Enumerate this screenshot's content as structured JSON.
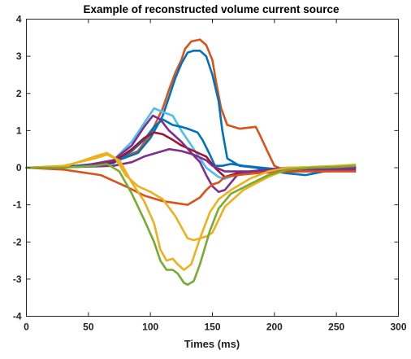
{
  "chart_data": {
    "type": "line",
    "title": "Example of reconstructed volume current source",
    "xlabel": "Times (ms)",
    "ylabel": "",
    "xlim": [
      0,
      300
    ],
    "ylim": [
      -4,
      4
    ],
    "x_ticks": [
      0,
      50,
      100,
      150,
      200,
      250,
      300
    ],
    "y_ticks": [
      -4,
      -3,
      -2,
      -1,
      0,
      1,
      2,
      3,
      4
    ],
    "x_tick_labels": [
      "0",
      "50",
      "100",
      "150",
      "200",
      "250",
      "300"
    ],
    "y_tick_labels": [
      "-4",
      "-3",
      "-2",
      "-1",
      "0",
      "1",
      "2",
      "3",
      "4"
    ],
    "grid": false,
    "legend": "none",
    "series": [
      {
        "color": "#D95319",
        "x": [
          0,
          40,
          70,
          90,
          100,
          110,
          115,
          120,
          125,
          128,
          133,
          140,
          145,
          150,
          153,
          157,
          162,
          172,
          185,
          188,
          195,
          200,
          210,
          225,
          240,
          255,
          265
        ],
        "y": [
          0,
          0.05,
          0.15,
          0.45,
          0.9,
          1.6,
          2.1,
          2.55,
          2.9,
          3.2,
          3.4,
          3.45,
          3.3,
          2.9,
          2.3,
          1.6,
          1.15,
          1.05,
          1.1,
          0.9,
          0.4,
          0.05,
          -0.1,
          -0.1,
          -0.05,
          -0.02,
          0.02
        ]
      },
      {
        "color": "#0072BD",
        "x": [
          0,
          40,
          70,
          90,
          100,
          110,
          115,
          120,
          125,
          130,
          135,
          140,
          145,
          150,
          155,
          158,
          162,
          172,
          185,
          192,
          200,
          210,
          225,
          240,
          255,
          265
        ],
        "y": [
          0,
          0.05,
          0.15,
          0.4,
          0.8,
          1.4,
          1.9,
          2.4,
          2.8,
          3.1,
          3.15,
          3.15,
          3.0,
          2.5,
          1.8,
          1.0,
          0.25,
          0.05,
          0.0,
          -0.05,
          -0.1,
          -0.15,
          -0.2,
          -0.1,
          -0.05,
          0.0
        ]
      },
      {
        "color": "#4DBEEE",
        "x": [
          0,
          40,
          70,
          85,
          95,
          103,
          110,
          118,
          125,
          135,
          145,
          155,
          160,
          168,
          180,
          200,
          220,
          240,
          265
        ],
        "y": [
          0,
          0.02,
          0.2,
          0.7,
          1.2,
          1.6,
          1.5,
          1.4,
          1.0,
          0.5,
          0.0,
          -0.25,
          -0.3,
          -0.2,
          -0.15,
          -0.1,
          -0.05,
          0.0,
          0.0
        ]
      },
      {
        "color": "#0072BD",
        "x": [
          0,
          40,
          70,
          85,
          95,
          103,
          110,
          118,
          125,
          130,
          138,
          142,
          148,
          152,
          158,
          165,
          175,
          190,
          205,
          220,
          240,
          265
        ],
        "y": [
          0,
          0.02,
          0.12,
          0.45,
          0.75,
          1.1,
          1.3,
          1.15,
          1.1,
          1.05,
          0.95,
          0.75,
          0.35,
          0.05,
          0.05,
          0.1,
          0.05,
          0.0,
          -0.05,
          -0.05,
          0.0,
          0.0
        ]
      },
      {
        "color": "#A2142F",
        "x": [
          0,
          40,
          70,
          85,
          95,
          103,
          110,
          118,
          125,
          135,
          145,
          152,
          160,
          170,
          190,
          210,
          230,
          250,
          265
        ],
        "y": [
          0,
          0.02,
          0.15,
          0.5,
          0.8,
          0.95,
          0.9,
          0.75,
          0.6,
          0.45,
          0.3,
          0.0,
          -0.25,
          -0.15,
          -0.1,
          -0.08,
          -0.05,
          -0.05,
          -0.1
        ]
      },
      {
        "color": "#7E2F8E",
        "x": [
          0,
          40,
          70,
          85,
          95,
          102,
          108,
          115,
          125,
          133,
          140,
          145,
          150,
          155,
          160,
          165,
          170,
          180,
          195,
          210,
          230,
          250,
          265
        ],
        "y": [
          0,
          0.02,
          0.2,
          0.6,
          1.1,
          1.4,
          1.3,
          1.0,
          0.7,
          0.4,
          0.15,
          -0.2,
          -0.5,
          -0.65,
          -0.6,
          -0.4,
          -0.2,
          -0.1,
          -0.05,
          0.0,
          0.0,
          0.0,
          0.0
        ]
      },
      {
        "color": "#7E2F8E",
        "x": [
          0,
          40,
          70,
          85,
          95,
          105,
          115,
          125,
          135,
          145,
          150,
          160,
          175,
          195,
          220,
          240,
          265
        ],
        "y": [
          0,
          0.02,
          0.05,
          0.15,
          0.3,
          0.4,
          0.5,
          0.45,
          0.35,
          0.2,
          0.05,
          -0.1,
          -0.1,
          -0.1,
          -0.05,
          -0.05,
          -0.05
        ]
      },
      {
        "color": "#D95319",
        "x": [
          0,
          30,
          60,
          80,
          95,
          110,
          120,
          130,
          135,
          140,
          145,
          150,
          155,
          160,
          170,
          185,
          200,
          220,
          240,
          265
        ],
        "y": [
          0,
          -0.05,
          -0.2,
          -0.5,
          -0.75,
          -0.9,
          -0.95,
          -1.0,
          -0.9,
          -0.8,
          -0.6,
          -0.45,
          -0.4,
          -0.25,
          -0.2,
          -0.15,
          -0.12,
          -0.1,
          -0.1,
          -0.1
        ]
      },
      {
        "color": "#EDB120",
        "x": [
          0,
          30,
          55,
          65,
          72,
          80,
          90,
          100,
          110,
          120,
          130,
          135,
          140,
          145,
          150,
          160,
          175,
          195,
          210,
          230,
          250,
          265
        ],
        "y": [
          0,
          0.02,
          0.3,
          0.4,
          0.25,
          -0.2,
          -0.5,
          -0.65,
          -0.85,
          -1.3,
          -1.9,
          -1.95,
          -1.9,
          -1.85,
          -1.75,
          -1.05,
          -0.6,
          -0.25,
          -0.05,
          0.0,
          0.02,
          0.05
        ]
      },
      {
        "color": "#EDB120",
        "x": [
          0,
          30,
          55,
          65,
          75,
          85,
          95,
          103,
          108,
          113,
          118,
          122,
          127,
          133,
          140,
          148,
          155,
          165,
          180,
          195,
          210,
          230,
          250,
          265
        ],
        "y": [
          0,
          0.05,
          0.25,
          0.35,
          0.2,
          -0.4,
          -0.9,
          -1.5,
          -2.2,
          -2.5,
          -2.45,
          -2.6,
          -2.75,
          -2.6,
          -1.9,
          -1.2,
          -0.85,
          -0.6,
          -0.3,
          -0.1,
          0.0,
          0.02,
          0.05,
          0.08
        ]
      },
      {
        "color": "#77AC30",
        "x": [
          0,
          30,
          55,
          65,
          75,
          85,
          95,
          103,
          108,
          113,
          118,
          122,
          127,
          130,
          135,
          140,
          148,
          155,
          165,
          180,
          195,
          210,
          230,
          250,
          265
        ],
        "y": [
          0,
          0.0,
          0.05,
          0.1,
          -0.1,
          -0.7,
          -1.4,
          -2.0,
          -2.5,
          -2.75,
          -2.75,
          -2.85,
          -3.1,
          -3.15,
          -3.05,
          -2.6,
          -1.7,
          -1.1,
          -0.7,
          -0.45,
          -0.2,
          -0.05,
          0.0,
          0.02,
          0.05
        ]
      }
    ]
  }
}
